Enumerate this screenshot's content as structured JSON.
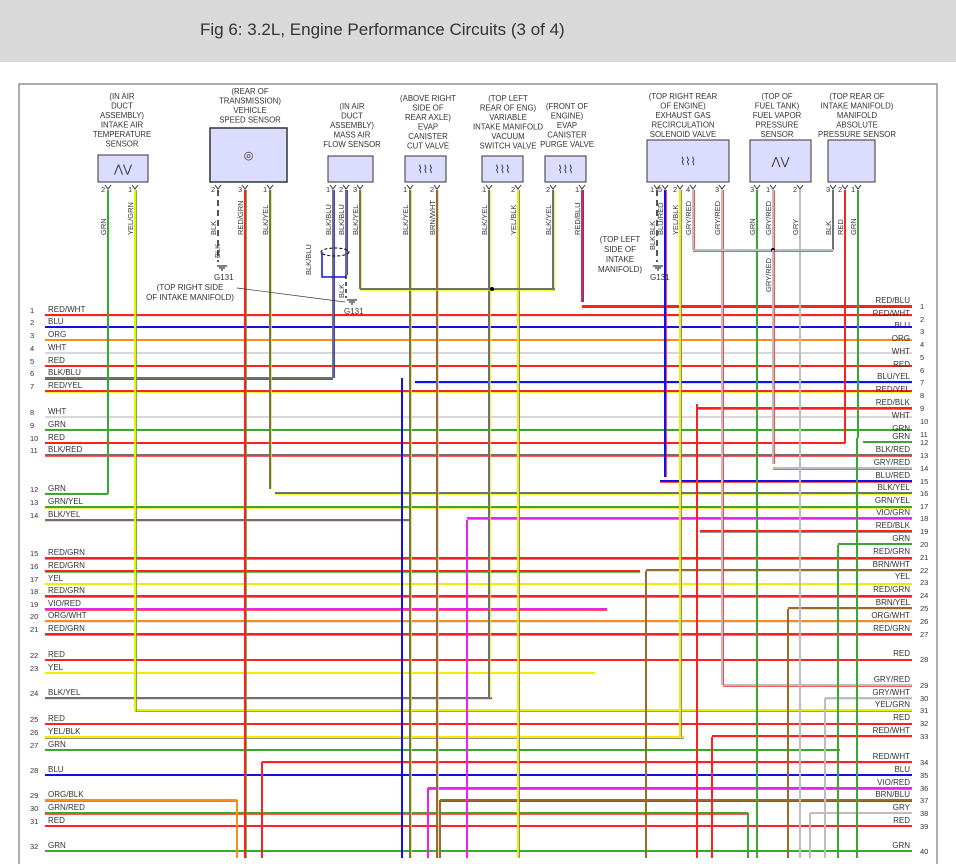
{
  "title": "Fig 6: 3.2L, Engine Performance Circuits (3 of 4)",
  "wire_colors": {
    "RED": "#ff2020",
    "WHT": "#d8d8d8",
    "BLU": "#1010ee",
    "ORG": "#ff8c1a",
    "GRN": "#3aa830",
    "YEL": "#eeee00",
    "BLK": "#707070",
    "GRY": "#bdbdbd",
    "VIO": "#ee22ee",
    "BRN": "#9a6a2a",
    "box_fill": "#dcdcff"
  },
  "components": [
    {
      "id": "iat",
      "lines": [
        "(IN AIR",
        "DUCT",
        "ASSEMBLY)",
        "INTAKE AIR",
        "TEMPERATURE",
        "SENSOR"
      ],
      "icon": "thermistor-icon",
      "pins": [
        {
          "num": "2",
          "wire": "GRN"
        },
        {
          "num": "1",
          "wire": "YEL/GRN"
        }
      ]
    },
    {
      "id": "vss",
      "lines": [
        "(REAR OF",
        "TRANSMISSION)",
        "VEHICLE",
        "SPEED SENSOR"
      ],
      "icon": "speed-sensor-icon",
      "pins": [
        {
          "num": "2",
          "wire": "BLK"
        },
        {
          "num": "3",
          "wire": "RED/GRN"
        },
        {
          "num": "1",
          "wire": "BLK/YEL"
        }
      ]
    },
    {
      "id": "maf",
      "lines": [
        "(IN AIR",
        "DUCT",
        "ASSEMBLY)",
        "MASS AIR",
        "FLOW SENSOR"
      ],
      "icon": "",
      "pins": [
        {
          "num": "1",
          "wire": "BLK/BLU"
        },
        {
          "num": "2",
          "wire": "BLK/BLU"
        },
        {
          "num": "3",
          "wire": "BLK/YEL"
        }
      ]
    },
    {
      "id": "cut",
      "lines": [
        "(ABOVE RIGHT",
        "SIDE OF",
        "REAR AXLE)",
        "EVAP",
        "CANISTER",
        "CUT VALVE"
      ],
      "icon": "solenoid-icon",
      "pins": [
        {
          "num": "1",
          "wire": "BLK/YEL"
        },
        {
          "num": "2",
          "wire": "BRN/WHT"
        }
      ]
    },
    {
      "id": "vis",
      "lines": [
        "(TOP LEFT",
        "REAR OF ENG)",
        "VARIABLE",
        "INTAKE MANIFOLD",
        "VACUUM",
        "SWITCH VALVE"
      ],
      "icon": "solenoid-icon",
      "pins": [
        {
          "num": "1",
          "wire": "BLK/YEL"
        },
        {
          "num": "2",
          "wire": "YEL/BLK"
        }
      ]
    },
    {
      "id": "purge",
      "lines": [
        "(FRONT OF",
        "ENGINE)",
        "EVAP",
        "CANISTER",
        "PURGE VALVE"
      ],
      "icon": "solenoid-icon",
      "pins": [
        {
          "num": "2",
          "wire": "BLK/YEL"
        },
        {
          "num": "1",
          "wire": "RED/BLU"
        }
      ]
    },
    {
      "id": "egr",
      "lines": [
        "(TOP RIGHT REAR",
        "OF ENGINE)",
        "EXHAUST GAS",
        "RECIRCULATION",
        "SOLENOID VALVE"
      ],
      "icon": "solenoid-potentiometer-icon",
      "pins": [
        {
          "num": "1",
          "wire": "BLK"
        },
        {
          "num": "5",
          "wire": "BLU/RED"
        },
        {
          "num": "2",
          "wire": "YEL/BLK"
        },
        {
          "num": "4",
          "wire": "GRY/RED"
        },
        {
          "num": "3",
          "wire": "GRY/RED"
        }
      ]
    },
    {
      "id": "ftp",
      "lines": [
        "(TOP OF",
        "FUEL TANK)",
        "FUEL VAPOR",
        "PRESSURE",
        "SENSOR"
      ],
      "icon": "potentiometer-icon",
      "pins": [
        {
          "num": "3",
          "wire": "GRN"
        },
        {
          "num": "1",
          "wire": "GRY/RED"
        },
        {
          "num": "2",
          "wire": "GRY"
        }
      ]
    },
    {
      "id": "map",
      "lines": [
        "(TOP REAR OF",
        "INTAKE MANIFOLD)",
        "MANIFOLD",
        "ABSOLUTE",
        "PRESSURE SENSOR"
      ],
      "icon": "",
      "pins": [
        {
          "num": "3",
          "wire": "BLK"
        },
        {
          "num": "2",
          "wire": "RED"
        },
        {
          "num": "1",
          "wire": "GRN"
        }
      ]
    }
  ],
  "grounds": {
    "vss": {
      "label": "G131",
      "upper": "BLK",
      "lower": "BLK",
      "note": [
        "(TOP RIGHT SIDE",
        "OF INTAKE MANIFOLD)"
      ]
    },
    "maf": {
      "label": "G131",
      "lower": "BLK",
      "shield": "BLK/BLU"
    },
    "egr": {
      "label": "G131",
      "lower": "BLK",
      "note": [
        "(TOP LEFT",
        "SIDE OF",
        "INTAKE",
        "MANIFOLD)"
      ]
    },
    "ftp_lower": "GRY/RED"
  },
  "left_wires": [
    {
      "pin": "1",
      "label": "RED/WHT"
    },
    {
      "pin": "2",
      "label": "BLU"
    },
    {
      "pin": "3",
      "label": "ORG"
    },
    {
      "pin": "4",
      "label": "WHT"
    },
    {
      "pin": "5",
      "label": "RED"
    },
    {
      "pin": "6",
      "label": "BLK/BLU"
    },
    {
      "pin": "7",
      "label": "RED/YEL"
    },
    {
      "pin": "8",
      "label": "WHT"
    },
    {
      "pin": "9",
      "label": "GRN"
    },
    {
      "pin": "10",
      "label": "RED"
    },
    {
      "pin": "11",
      "label": "BLK/RED"
    },
    {
      "pin": "12",
      "label": "GRN"
    },
    {
      "pin": "13",
      "label": "GRN/YEL"
    },
    {
      "pin": "14",
      "label": "BLK/YEL"
    },
    {
      "pin": "15",
      "label": "RED/GRN"
    },
    {
      "pin": "16",
      "label": "RED/GRN"
    },
    {
      "pin": "17",
      "label": "YEL"
    },
    {
      "pin": "18",
      "label": "RED/GRN"
    },
    {
      "pin": "19",
      "label": "VIO/RED"
    },
    {
      "pin": "20",
      "label": "ORG/WHT"
    },
    {
      "pin": "21",
      "label": "RED/GRN"
    },
    {
      "pin": "22",
      "label": "RED"
    },
    {
      "pin": "23",
      "label": "YEL"
    },
    {
      "pin": "24",
      "label": "BLK/YEL"
    },
    {
      "pin": "25",
      "label": "RED"
    },
    {
      "pin": "26",
      "label": "YEL/BLK"
    },
    {
      "pin": "27",
      "label": "GRN"
    },
    {
      "pin": "28",
      "label": "BLU"
    },
    {
      "pin": "29",
      "label": "ORG/BLK"
    },
    {
      "pin": "30",
      "label": "GRN/RED"
    },
    {
      "pin": "31",
      "label": "RED"
    },
    {
      "pin": "32",
      "label": "GRN"
    }
  ],
  "right_wires": [
    {
      "pin": "1",
      "label": "RED/BLU"
    },
    {
      "pin": "2",
      "label": "RED/WHT"
    },
    {
      "pin": "3",
      "label": "BLU"
    },
    {
      "pin": "4",
      "label": "ORG"
    },
    {
      "pin": "5",
      "label": "WHT"
    },
    {
      "pin": "6",
      "label": "RED"
    },
    {
      "pin": "7",
      "label": "BLU/YEL"
    },
    {
      "pin": "8",
      "label": "RED/YEL"
    },
    {
      "pin": "9",
      "label": "RED/BLK"
    },
    {
      "pin": "10",
      "label": "WHT"
    },
    {
      "pin": "11",
      "label": "GRN"
    },
    {
      "pin": "12",
      "label": "GRN"
    },
    {
      "pin": "13",
      "label": "BLK/RED"
    },
    {
      "pin": "14",
      "label": "GRY/RED"
    },
    {
      "pin": "15",
      "label": "BLU/RED"
    },
    {
      "pin": "16",
      "label": "BLK/YEL"
    },
    {
      "pin": "17",
      "label": "GRN/YEL"
    },
    {
      "pin": "18",
      "label": "VIO/GRN"
    },
    {
      "pin": "19",
      "label": "RED/BLK"
    },
    {
      "pin": "20",
      "label": "GRN"
    },
    {
      "pin": "21",
      "label": "RED/GRN"
    },
    {
      "pin": "22",
      "label": "BRN/WHT"
    },
    {
      "pin": "23",
      "label": "YEL"
    },
    {
      "pin": "24",
      "label": "RED/GRN"
    },
    {
      "pin": "25",
      "label": "BRN/YEL"
    },
    {
      "pin": "26",
      "label": "ORG/WHT"
    },
    {
      "pin": "27",
      "label": "RED/GRN"
    },
    {
      "pin": "28",
      "label": "RED"
    },
    {
      "pin": "29",
      "label": "GRY/RED"
    },
    {
      "pin": "30",
      "label": "GRY/WHT"
    },
    {
      "pin": "31",
      "label": "YEL/GRN"
    },
    {
      "pin": "32",
      "label": "RED"
    },
    {
      "pin": "33",
      "label": "RED/WHT"
    },
    {
      "pin": "34",
      "label": "RED/WHT"
    },
    {
      "pin": "35",
      "label": "BLU"
    },
    {
      "pin": "36",
      "label": "VIO/RED"
    },
    {
      "pin": "37",
      "label": "BRN/BLU"
    },
    {
      "pin": "38",
      "label": "GRY"
    },
    {
      "pin": "39",
      "label": "RED"
    },
    {
      "pin": "40",
      "label": "GRN"
    }
  ]
}
